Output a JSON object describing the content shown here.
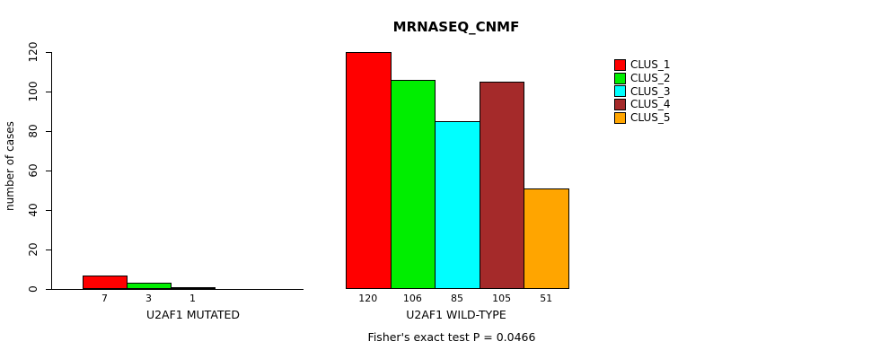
{
  "chart_data": {
    "type": "bar",
    "title": "MRNASEQ_CNMF",
    "ylabel": "number of cases",
    "xlabel": "",
    "ylim": [
      0,
      120
    ],
    "yticks": [
      0,
      20,
      40,
      60,
      80,
      100,
      120
    ],
    "grid": false,
    "legend_position": "right",
    "categories": [
      "U2AF1 MUTATED",
      "U2AF1 WILD-TYPE"
    ],
    "series": [
      {
        "name": "CLUS_1",
        "color": "#FF0000",
        "values": [
          7,
          120
        ]
      },
      {
        "name": "CLUS_2",
        "color": "#00EE00",
        "values": [
          3,
          106
        ]
      },
      {
        "name": "CLUS_3",
        "color": "#00FFFF",
        "values": [
          1,
          85
        ]
      },
      {
        "name": "CLUS_4",
        "color": "#A52A2A",
        "values": [
          0,
          105
        ]
      },
      {
        "name": "CLUS_5",
        "color": "#FFA500",
        "values": [
          0,
          51
        ]
      }
    ],
    "bar_value_labels": [
      [
        "7",
        "3",
        "1",
        "",
        ""
      ],
      [
        "120",
        "106",
        "85",
        "105",
        "51"
      ]
    ],
    "annotation": "Fisher's exact test P = 0.0466"
  }
}
